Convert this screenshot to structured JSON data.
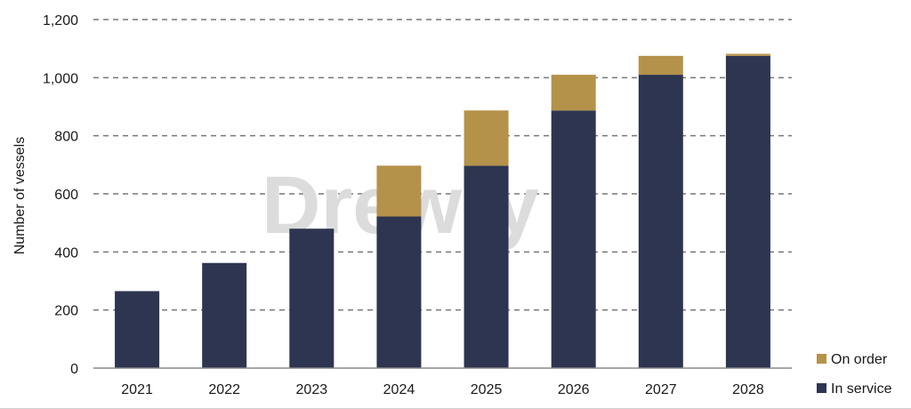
{
  "chart_data": {
    "type": "bar",
    "stacked": true,
    "categories": [
      "2021",
      "2022",
      "2023",
      "2024",
      "2025",
      "2026",
      "2027",
      "2028"
    ],
    "series": [
      {
        "name": "In service",
        "color": "#2d3550",
        "values": [
          265,
          362,
          480,
          522,
          697,
          887,
          1010,
          1075
        ]
      },
      {
        "name": "On order",
        "color": "#b5924a",
        "values": [
          0,
          0,
          0,
          175,
          190,
          123,
          65,
          7
        ]
      }
    ],
    "title": "",
    "xlabel": "",
    "ylabel": "Number of vessels",
    "ylim": [
      0,
      1200
    ],
    "yticks": [
      0,
      200,
      400,
      600,
      800,
      1000,
      1200
    ],
    "ytick_labels": [
      "0",
      "200",
      "400",
      "600",
      "800",
      "1,000",
      "1,200"
    ],
    "grid": "horizontal dashed",
    "legend_position": "bottom-right",
    "legend_order": [
      "On order",
      "In service"
    ],
    "watermark": "Drewry"
  }
}
